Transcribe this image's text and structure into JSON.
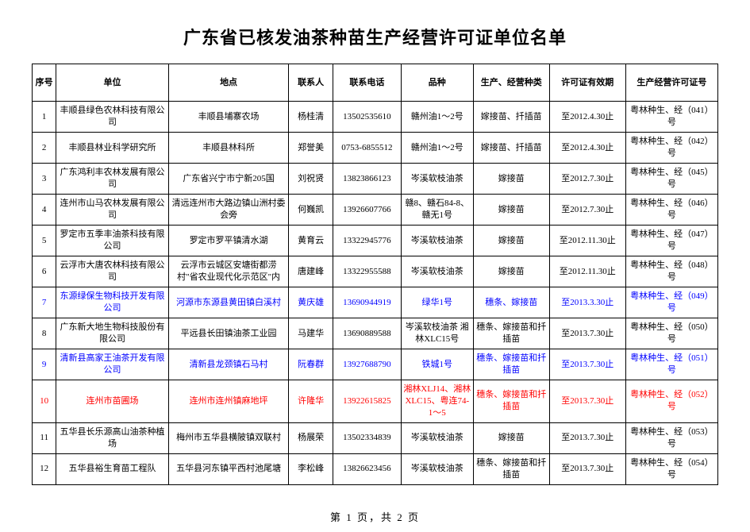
{
  "title": "广东省已核发油茶种苗生产经营许可证单位名单",
  "columns": {
    "idx": "序号",
    "unit": "单位",
    "loc": "地点",
    "person": "联系人",
    "phone": "联系电话",
    "pin": "品种",
    "type": "生产、经营种类",
    "valid": "许可证有效期",
    "cert": "生产经营许可证号"
  },
  "r1": {
    "idx": "1",
    "unit": "丰顺县绿色农林科技有限公司",
    "loc": "丰顺县埔寨农场",
    "person": "杨桂清",
    "phone": "13502535610",
    "pin": "赣州油1～2号",
    "type": "嫁接苗、扦插苗",
    "valid": "至2012.4.30止",
    "cert": "粤林种生、经（041）号",
    "cls": ""
  },
  "r2": {
    "idx": "2",
    "unit": "丰顺县林业科学研究所",
    "loc": "丰顺县林科所",
    "person": "郑誉美",
    "phone": "0753-6855512",
    "pin": "赣州油1～2号",
    "type": "嫁接苗、扦插苗",
    "valid": "至2012.4.30止",
    "cert": "粤林种生、经（042）号",
    "cls": ""
  },
  "r3": {
    "idx": "3",
    "unit": "广东鸿利丰农林发展有限公司",
    "loc": "广东省兴宁市宁新205国",
    "person": "刘祝贤",
    "phone": "13823866123",
    "pin": "岑溪软枝油茶",
    "type": "嫁接苗",
    "valid": "至2012.7.30止",
    "cert": "粤林种生、经（045）号",
    "cls": ""
  },
  "r4": {
    "idx": "4",
    "unit": "连州市山马农林发展有限公司",
    "loc": "清远连州市大路边镇山洲村委会旁",
    "person": "何巍凯",
    "phone": "13926607766",
    "pin": "赣8、赣石84-8、赣无1号",
    "type": "嫁接苗",
    "valid": "至2012.7.30止",
    "cert": "粤林种生、经（046）号",
    "cls": ""
  },
  "r5": {
    "idx": "5",
    "unit": "罗定市五季丰油茶科技有限公司",
    "loc": "罗定市罗平镇清水湖",
    "person": "黄育云",
    "phone": "13322945776",
    "pin": "岑溪软枝油茶",
    "type": "嫁接苗",
    "valid": "至2012.11.30止",
    "cert": "粤林种生、经（047）号",
    "cls": ""
  },
  "r6": {
    "idx": "6",
    "unit": "云浮市大唐农林科技有限公司",
    "loc": "云浮市云城区安塘街都涝村\"省农业现代化示范区\"内",
    "person": "唐建峰",
    "phone": "13322955588",
    "pin": "岑溪软枝油茶",
    "type": "嫁接苗",
    "valid": "至2012.11.30止",
    "cert": "粤林种生、经（048）号",
    "cls": ""
  },
  "r7": {
    "idx": "7",
    "unit": "东源绿保生物科技开发有限公司",
    "loc": "河源市东源县黄田镇白溪村",
    "person": "黄庆雄",
    "phone": "13690944919",
    "pin": "绿华1号",
    "type": "穗条、嫁接苗",
    "valid": "至2013.3.30止",
    "cert": "粤林种生、经（049）号",
    "cls": "blue"
  },
  "r8": {
    "idx": "8",
    "unit": "广东新大地生物科技股份有限公司",
    "loc": "平远县长田镇油茶工业园",
    "person": "马建华",
    "phone": "13690889588",
    "pin": "岑溪软枝油茶 湘林XLC15号",
    "type": "穗条、嫁接苗和扦插苗",
    "valid": "至2013.7.30止",
    "cert": "粤林种生、经（050）号",
    "cls": ""
  },
  "r9": {
    "idx": "9",
    "unit": "清新县高家王油茶开发有限公司",
    "loc": "清新县龙颈镇石马村",
    "person": "阮春群",
    "phone": "13927688790",
    "pin": "铁城1号",
    "type": "穗条、嫁接苗和扦插苗",
    "valid": "至2013.7.30止",
    "cert": "粤林种生、经（051）号",
    "cls": "blue"
  },
  "r10": {
    "idx": "10",
    "unit": "连州市苗圃场",
    "loc": "连州市连州镇麻地坪",
    "person": "许隆华",
    "phone": "13922615825",
    "pin": "湘林XLJ14、湘林XLC15、粤连74-1～5",
    "type": "穗条、嫁接苗和扦插苗",
    "valid": "至2013.7.30止",
    "cert": "粤林种生、经（052）号",
    "cls": "red"
  },
  "r11": {
    "idx": "11",
    "unit": "五华县长乐源高山油茶种植场",
    "loc": "梅州市五华县横陂镇双联村",
    "person": "杨展荣",
    "phone": "13502334839",
    "pin": "岑溪软枝油茶",
    "type": "嫁接苗",
    "valid": "至2013.7.30止",
    "cert": "粤林种生、经（053）号",
    "cls": ""
  },
  "r12": {
    "idx": "12",
    "unit": "五华县裕生育苗工程队",
    "loc": "五华县河东镇平西村池尾塘",
    "person": "李松峰",
    "phone": "13826623456",
    "pin": "岑溪软枝油茶",
    "type": "穗条、嫁接苗和扦插苗",
    "valid": "至2013.7.30止",
    "cert": "粤林种生、经（054）号",
    "cls": ""
  },
  "pager": "第 1 页，共 2 页"
}
